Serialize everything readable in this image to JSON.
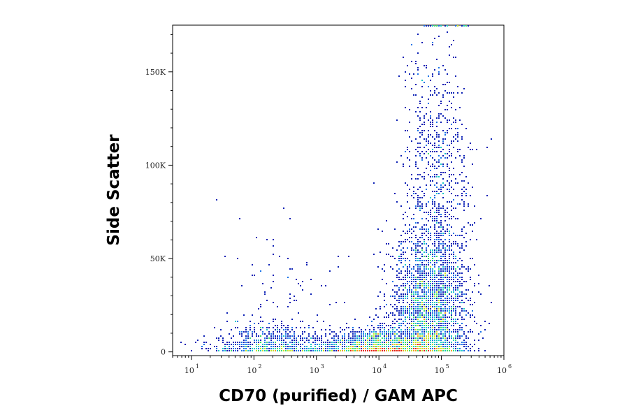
{
  "chart_data": {
    "type": "scatter",
    "subtype": "flow-cytometry-density-dot-plot",
    "title": "",
    "xlabel": "CD70 (purified) / GAM APC",
    "ylabel": "Side Scatter",
    "x_scale": "log",
    "xlim": [
      5,
      1000000
    ],
    "x_ticks": [
      {
        "value": 10,
        "base": "10",
        "exp": "1"
      },
      {
        "value": 100,
        "base": "10",
        "exp": "2"
      },
      {
        "value": 1000,
        "base": "10",
        "exp": "3"
      },
      {
        "value": 10000,
        "base": "10",
        "exp": "4"
      },
      {
        "value": 100000,
        "base": "10",
        "exp": "5"
      },
      {
        "value": 1000000,
        "base": "10",
        "exp": "6"
      }
    ],
    "y_scale": "linear",
    "ylim": [
      -2000,
      175000
    ],
    "y_ticks": [
      {
        "value": 0,
        "label": "0"
      },
      {
        "value": 50000,
        "label": "50K"
      },
      {
        "value": 100000,
        "label": "100K"
      },
      {
        "value": 150000,
        "label": "150K"
      }
    ],
    "grid": false,
    "legend": "none",
    "density_colors": [
      "#0a1fb4",
      "#1a73e8",
      "#19c9c4",
      "#3ee06a",
      "#c8e22a",
      "#f5a21b",
      "#e8240f"
    ],
    "populations": [
      {
        "x_center": 80000,
        "y_center": 20000,
        "density": "very high",
        "color": "#e8240f"
      },
      {
        "x_center": 50000,
        "y_center": 35000,
        "density": "high",
        "color": "#3ee06a"
      },
      {
        "x_center": 12000,
        "y_center": 3000,
        "density": "medium",
        "color": "#3ee06a"
      },
      {
        "x_center": 180,
        "y_center": 3000,
        "density": "medium",
        "color": "#c8e22a"
      },
      {
        "x_center": 100000,
        "y_center": 120000,
        "density": "low",
        "color": "#0a1fb4"
      }
    ]
  }
}
